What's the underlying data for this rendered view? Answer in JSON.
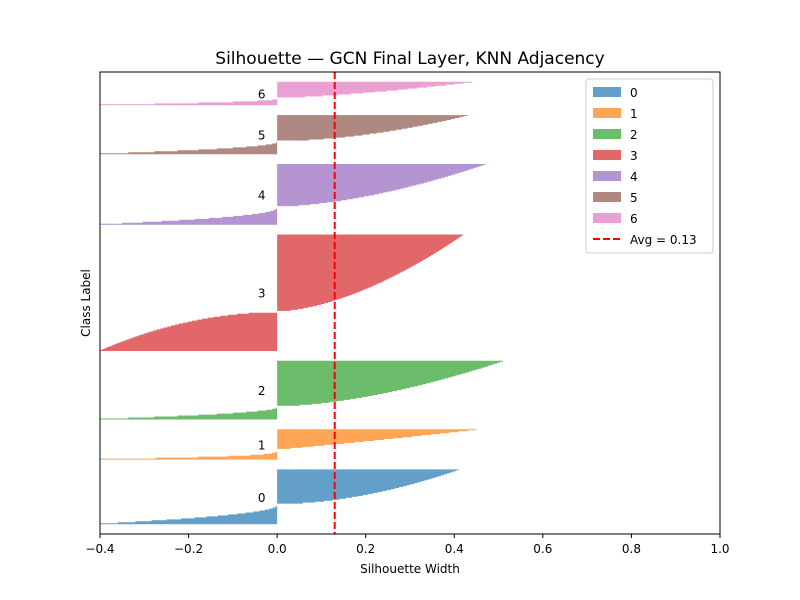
{
  "chart_data": {
    "type": "area",
    "title": "Silhouette — GCN Final Layer, KNN Adjacency",
    "xlabel": "Silhouette Width",
    "ylabel": "Class Label",
    "xlim": [
      -0.4,
      1.0
    ],
    "xticks": [
      "−0.4",
      "−0.2",
      "0.0",
      "0.2",
      "0.4",
      "0.6",
      "0.8",
      "1.0"
    ],
    "xtick_values": [
      -0.4,
      -0.2,
      0.0,
      0.2,
      0.4,
      0.6,
      0.8,
      1.0
    ],
    "grid": false,
    "legend_position": "upper right",
    "average": {
      "value": 0.13,
      "label": "Avg = 0.13",
      "color": "#ff0000"
    },
    "clusters": [
      {
        "label": "0",
        "color": "#1f77b4",
        "max": 0.41,
        "min": -0.4,
        "size": 56,
        "neg_fraction": 0.35,
        "pos_shape": 0.55,
        "neg_shape": 2.0
      },
      {
        "label": "1",
        "color": "#ff7f0e",
        "max": 0.45,
        "min": -0.4,
        "size": 31,
        "neg_fraction": 0.33,
        "pos_shape": 0.9,
        "neg_shape": 3.2
      },
      {
        "label": "2",
        "color": "#2ca02c",
        "max": 0.51,
        "min": -0.4,
        "size": 60,
        "neg_fraction": 0.22,
        "pos_shape": 0.6,
        "neg_shape": 2.0
      },
      {
        "label": "3",
        "color": "#d62728",
        "max": 0.42,
        "min": -0.4,
        "size": 119,
        "neg_fraction": 0.34,
        "pos_shape": 0.6,
        "neg_shape": 0.5
      },
      {
        "label": "4",
        "color": "#9467bd",
        "max": 0.47,
        "min": -0.4,
        "size": 62,
        "neg_fraction": 0.29,
        "pos_shape": 0.6,
        "neg_shape": 2.2
      },
      {
        "label": "5",
        "color": "#8c564b",
        "max": 0.43,
        "min": -0.4,
        "size": 40,
        "neg_fraction": 0.32,
        "pos_shape": 0.55,
        "neg_shape": 2.0
      },
      {
        "label": "6",
        "color": "#e377c2",
        "max": 0.44,
        "min": -0.4,
        "size": 24,
        "neg_fraction": 0.3,
        "pos_shape": 0.7,
        "neg_shape": 2.0
      }
    ]
  }
}
